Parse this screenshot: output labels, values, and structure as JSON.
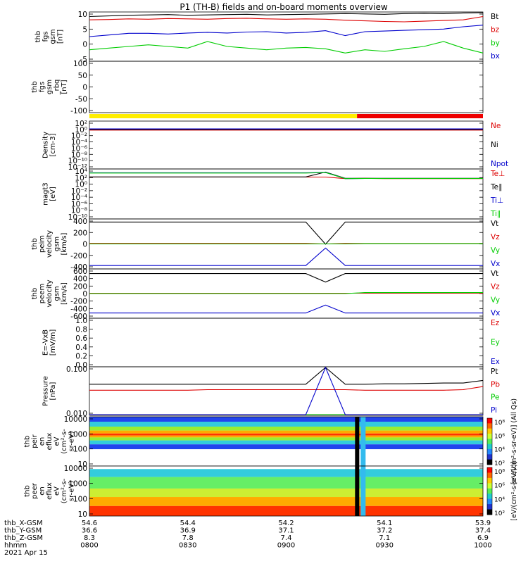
{
  "title": "P1  (TH-B) fields and on-board moments overview",
  "colors": {
    "black": "#000000",
    "red": "#dd0000",
    "green": "#00cc00",
    "blue": "#0000cc",
    "yellow": "#ffee00",
    "bar_red": "#ee0000",
    "lime": "#00cc00"
  },
  "chart_data": [
    {
      "id": "fgs",
      "type": "line",
      "ylabel": [
        "thb",
        "fgs",
        "gsm",
        "[nT]"
      ],
      "ylim": [
        -5,
        10
      ],
      "yticks": [
        "10",
        "5",
        "0",
        "-5"
      ],
      "series": [
        {
          "name": "Bt",
          "color": "#000000",
          "values": [
            8.6,
            8.8,
            9.0,
            9.1,
            9.2,
            9.0,
            9.1,
            9.2,
            9.3,
            9.1,
            9.2,
            9.3,
            9.4,
            9.5,
            9.4,
            9.3,
            9.5,
            9.6,
            9.5,
            9.7,
            10.0
          ]
        },
        {
          "name": "bz",
          "color": "#dd0000",
          "values": [
            7.6,
            7.7,
            7.9,
            7.8,
            8.0,
            7.9,
            7.8,
            8.0,
            8.1,
            7.9,
            7.8,
            7.9,
            7.8,
            7.5,
            7.3,
            7.1,
            7.0,
            7.2,
            7.4,
            7.6,
            8.6
          ]
        },
        {
          "name": "by",
          "color": "#00cc00",
          "values": [
            -1.5,
            -1.0,
            -0.5,
            0.0,
            -0.5,
            -1.0,
            1.0,
            -0.5,
            -1.0,
            -1.5,
            -1.0,
            -0.8,
            -1.2,
            -2.5,
            -1.5,
            -2.0,
            -1.2,
            -0.5,
            1.0,
            -1.0,
            -2.5
          ]
        },
        {
          "name": "bx",
          "color": "#0000cc",
          "values": [
            2.5,
            3.0,
            3.5,
            3.5,
            3.3,
            3.6,
            3.8,
            3.6,
            3.9,
            4.0,
            3.6,
            3.8,
            4.3,
            2.8,
            4.0,
            4.2,
            4.4,
            4.6,
            4.8,
            5.5,
            6.0
          ]
        }
      ]
    },
    {
      "id": "fgs_rbq",
      "type": "line",
      "ylabel": [
        "thb",
        "fgs",
        "gsm",
        "_rbq",
        "[nT]"
      ],
      "ylim": [
        -120,
        110
      ],
      "yticks": [
        "100",
        "50",
        "0",
        "-50",
        "-100"
      ],
      "series": []
    },
    {
      "id": "density",
      "type": "line",
      "ylabel": [
        "Density",
        "[cm-3]"
      ],
      "log": true,
      "yticks": [
        "10²",
        "10⁰",
        "10⁻²",
        "10⁻⁴",
        "10⁻⁶",
        "10⁻⁸",
        "10⁻¹⁰",
        "10⁻¹²"
      ],
      "series": [
        {
          "name": "Ne",
          "color": "#dd0000",
          "values": [
            0.6,
            0.6,
            0.6,
            0.6,
            0.6,
            0.6,
            0.6,
            0.6,
            0.6,
            0.6,
            0.6,
            0.6,
            0.6,
            0.6,
            0.6,
            0.6,
            0.6,
            0.6,
            0.6,
            0.6,
            0.6
          ]
        },
        {
          "name": "Ni",
          "color": "#000000",
          "values": [
            1,
            1,
            1,
            1,
            1,
            1,
            1,
            1,
            1,
            1,
            1,
            1,
            1,
            1,
            1,
            1,
            1,
            1,
            1,
            1,
            1
          ]
        },
        {
          "name": "Npot",
          "color": "#0000cc",
          "values": [
            1.5,
            1.5,
            1.5,
            1.5,
            1.5,
            1.5,
            1.5,
            1.5,
            1.5,
            1.5,
            1.5,
            1.5,
            1.5,
            1.5,
            1.5,
            1.5,
            1.5,
            1.5,
            1.5,
            1.5,
            1.5
          ]
        }
      ]
    },
    {
      "id": "temperature",
      "type": "line",
      "ylabel": [
        "magt3",
        "[eV]"
      ],
      "log": true,
      "yticks": [
        "10⁴",
        "10²",
        "10⁰",
        "10⁻²",
        "10⁻⁴",
        "10⁻⁶",
        "10⁻⁸",
        "10⁻¹⁰"
      ],
      "series": [
        {
          "name": "Te⊥",
          "color": "#dd0000",
          "values": [
            150,
            150,
            150,
            150,
            150,
            150,
            150,
            150,
            150,
            150,
            150,
            150,
            150,
            50,
            60,
            50,
            50,
            50,
            50,
            50,
            50
          ]
        },
        {
          "name": "Te∥",
          "color": "#000000",
          "values": [
            160,
            160,
            160,
            160,
            160,
            160,
            160,
            160,
            160,
            160,
            160,
            160,
            5000,
            60,
            60,
            60,
            60,
            60,
            60,
            60,
            60
          ]
        },
        {
          "name": "Ti⊥",
          "color": "#0000cc",
          "values": [
            3000,
            3000,
            3000,
            3000,
            3000,
            3000,
            3000,
            3000,
            3000,
            3000,
            3000,
            3000,
            4000,
            50,
            55,
            55,
            55,
            55,
            55,
            55,
            55
          ]
        },
        {
          "name": "Ti∥",
          "color": "#00cc00",
          "values": [
            2500,
            2500,
            2500,
            2500,
            2500,
            2500,
            2500,
            2500,
            2500,
            2500,
            2500,
            2500,
            3500,
            50,
            55,
            55,
            55,
            55,
            55,
            55,
            55
          ]
        }
      ]
    },
    {
      "id": "peim_velocity",
      "type": "line",
      "ylabel": [
        "thb",
        "peim",
        "velocity",
        "gsm",
        "[km/s]"
      ],
      "ylim": [
        -480,
        480
      ],
      "yticks": [
        "400",
        "200",
        "0",
        "-200",
        "-400"
      ],
      "series": [
        {
          "name": "Vt",
          "color": "#000000",
          "values": [
            420,
            420,
            420,
            420,
            420,
            420,
            420,
            420,
            420,
            420,
            420,
            420,
            -5,
            420,
            420,
            420,
            420,
            420,
            420,
            420,
            420
          ]
        },
        {
          "name": "Vz",
          "color": "#dd0000",
          "values": [
            10,
            10,
            10,
            10,
            10,
            10,
            10,
            10,
            10,
            10,
            10,
            10,
            0,
            10,
            10,
            10,
            10,
            10,
            10,
            10,
            10
          ]
        },
        {
          "name": "Vy",
          "color": "#00cc00",
          "values": [
            0,
            0,
            0,
            0,
            0,
            0,
            0,
            0,
            0,
            0,
            0,
            0,
            0,
            0,
            5,
            5,
            5,
            5,
            5,
            5,
            5
          ]
        },
        {
          "name": "Vx",
          "color": "#0000cc",
          "values": [
            -415,
            -415,
            -415,
            -415,
            -415,
            -415,
            -415,
            -415,
            -415,
            -415,
            -415,
            -415,
            -80,
            -415,
            -415,
            -415,
            -415,
            -415,
            -415,
            -415,
            -415
          ]
        }
      ]
    },
    {
      "id": "peem_velocity",
      "type": "line",
      "ylabel": [
        "thb",
        "peem",
        "velocity",
        "gsm",
        "[km/s]"
      ],
      "ylim": [
        -640,
        640
      ],
      "yticks": [
        "600",
        "400",
        "200",
        "0",
        "-200",
        "-400",
        "-600"
      ],
      "series": [
        {
          "name": "Vt",
          "color": "#000000",
          "values": [
            520,
            520,
            520,
            520,
            520,
            520,
            520,
            520,
            520,
            520,
            520,
            520,
            300,
            520,
            520,
            520,
            520,
            520,
            520,
            520,
            520
          ]
        },
        {
          "name": "Vz",
          "color": "#dd0000",
          "values": [
            10,
            10,
            10,
            10,
            10,
            10,
            10,
            10,
            10,
            10,
            10,
            10,
            10,
            10,
            10,
            10,
            10,
            10,
            10,
            10,
            10
          ]
        },
        {
          "name": "Vy",
          "color": "#00cc00",
          "values": [
            0,
            0,
            0,
            0,
            0,
            0,
            0,
            0,
            0,
            0,
            0,
            0,
            0,
            0,
            25,
            25,
            25,
            25,
            25,
            25,
            25
          ]
        },
        {
          "name": "Vx",
          "color": "#0000cc",
          "values": [
            -505,
            -505,
            -505,
            -505,
            -505,
            -505,
            -505,
            -505,
            -505,
            -505,
            -505,
            -505,
            -300,
            -505,
            -505,
            -505,
            -505,
            -505,
            -505,
            -505,
            -505
          ]
        }
      ]
    },
    {
      "id": "efield",
      "type": "line",
      "ylabel": [
        "E=-VxB",
        "[mV/m]"
      ],
      "ylim": [
        0,
        1
      ],
      "yticks": [
        "1.0",
        "0.8",
        "0.6",
        "0.4",
        "0.2",
        "0.0"
      ],
      "series": [
        {
          "name": "Ez",
          "color": "#dd0000",
          "values": []
        },
        {
          "name": "Ey",
          "color": "#00cc00",
          "values": []
        },
        {
          "name": "Ex",
          "color": "#0000cc",
          "values": []
        }
      ]
    },
    {
      "id": "pressure",
      "type": "line",
      "ylabel": [
        "Pressure",
        "[nPa]"
      ],
      "log": true,
      "yticks": [
        "0.100",
        "0.010"
      ],
      "series": [
        {
          "name": "Pt",
          "color": "#000000",
          "values": [
            0.045,
            0.045,
            0.045,
            0.045,
            0.045,
            0.045,
            0.045,
            0.045,
            0.045,
            0.045,
            0.045,
            0.045,
            0.35,
            0.045,
            0.045,
            0.046,
            0.046,
            0.047,
            0.048,
            0.048,
            0.055
          ]
        },
        {
          "name": "Pb",
          "color": "#dd0000",
          "values": [
            0.033,
            0.033,
            0.033,
            0.033,
            0.033,
            0.033,
            0.034,
            0.034,
            0.034,
            0.034,
            0.034,
            0.034,
            0.034,
            0.034,
            0.033,
            0.033,
            0.033,
            0.033,
            0.033,
            0.034,
            0.04
          ]
        },
        {
          "name": "Pe",
          "color": "#00cc00",
          "values": [
            0.009,
            0.009,
            0.009,
            0.009,
            0.009,
            0.009,
            0.009,
            0.009,
            0.009,
            0.009,
            0.009,
            0.009,
            0.004,
            0.009,
            0.009,
            0.009,
            0.009,
            0.009,
            0.009,
            0.009,
            0.009
          ]
        },
        {
          "name": "Pi",
          "color": "#0000cc",
          "values": [
            0.009,
            0.009,
            0.009,
            0.009,
            0.009,
            0.009,
            0.009,
            0.009,
            0.009,
            0.009,
            0.009,
            0.009,
            0.3,
            0.008,
            0.008,
            0.008,
            0.008,
            0.008,
            0.008,
            0.008,
            0.008
          ]
        }
      ]
    },
    {
      "id": "peir_spectrogram",
      "type": "heatmap",
      "ylabel": [
        "thb",
        "peir",
        "en",
        "eflux",
        "eV",
        "(cm²-s-",
        "sr-eV)"
      ],
      "yticks": [
        "10000",
        "1000",
        "100",
        "10"
      ],
      "colorbar_label": "[eV/(cm²-s-sr-eV)] (All Qs)",
      "colorbar_ticks": [
        "10⁸",
        "10⁶",
        "10⁴",
        "10²"
      ]
    },
    {
      "id": "peer_spectrogram",
      "type": "heatmap",
      "ylabel": [
        "thb",
        "peer",
        "en",
        "eflux",
        "eV",
        "(cm²-s-",
        "sr-eV)"
      ],
      "yticks": [
        "10000",
        "1000",
        "100",
        "10"
      ],
      "colorbar_label": "[eV/(cm²-s-sr-eV)]",
      "colorbar_ticks": [
        "10⁸",
        "10⁶",
        "10⁴",
        "10²"
      ]
    }
  ],
  "xaxis": {
    "row_labels": [
      "thb_X-GSM",
      "thb_Y-GSM",
      "thb_Z-GSM",
      "hhmm",
      "2021 Apr 15"
    ],
    "columns": [
      {
        "x": "54.6",
        "y": "36.6",
        "z": "8.3",
        "t": "0800"
      },
      {
        "x": "54.4",
        "y": "36.9",
        "z": "7.8",
        "t": "0830"
      },
      {
        "x": "54.2",
        "y": "37.1",
        "z": "7.4",
        "t": "0900"
      },
      {
        "x": "54.1",
        "y": "37.2",
        "z": "7.1",
        "t": "0930"
      },
      {
        "x": "53.9",
        "y": "37.4",
        "z": "6.9",
        "t": "1000"
      }
    ]
  }
}
